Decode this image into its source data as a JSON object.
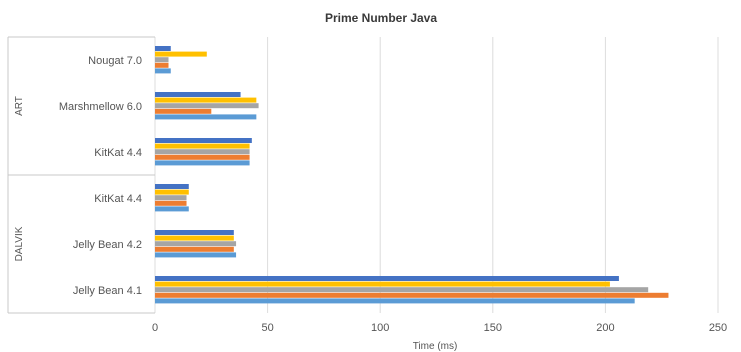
{
  "chart_data": {
    "type": "bar",
    "orientation": "horizontal",
    "title": "Prime Number Java",
    "xlabel": "Time (ms)",
    "ylabel": "",
    "xlim": [
      0,
      250
    ],
    "xticks": [
      0,
      50,
      100,
      150,
      200,
      250
    ],
    "grid": true,
    "legend": "none",
    "groups": [
      {
        "name": "ART",
        "categories": [
          "Nougat 7.0",
          "Marshmellow 6.0",
          "KitKat 4.4"
        ]
      },
      {
        "name": "DALVIK",
        "categories": [
          "KitKat 4.4",
          "Jelly Bean 4.2",
          "Jelly Bean 4.1"
        ]
      }
    ],
    "categories": [
      "Nougat 7.0",
      "Marshmellow 6.0",
      "KitKat 4.4",
      "KitKat 4.4",
      "Jelly Bean 4.2",
      "Jelly Bean 4.1"
    ],
    "series_colors": [
      "#4472c4",
      "#ffc000",
      "#a5a5a5",
      "#ed7d31",
      "#5b9bd5"
    ],
    "series": [
      {
        "values": [
          7,
          38,
          43,
          15,
          35,
          206
        ]
      },
      {
        "values": [
          23,
          45,
          42,
          15,
          35,
          202
        ]
      },
      {
        "values": [
          6,
          46,
          42,
          14,
          36,
          219
        ]
      },
      {
        "values": [
          6,
          25,
          42,
          14,
          35,
          228
        ]
      },
      {
        "values": [
          7,
          45,
          42,
          15,
          36,
          213
        ]
      }
    ]
  }
}
